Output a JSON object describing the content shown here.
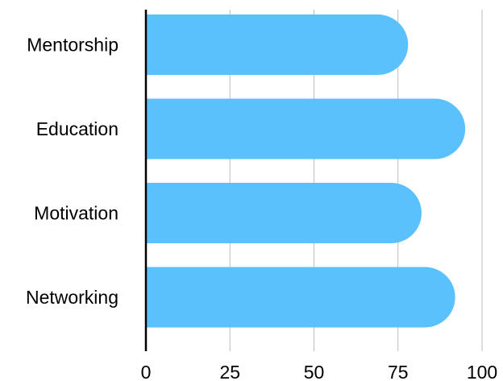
{
  "chart_data": {
    "type": "bar",
    "orientation": "horizontal",
    "categories": [
      "Mentorship",
      "Education",
      "Motivation",
      "Networking"
    ],
    "values": [
      78,
      95,
      82,
      92
    ],
    "xlim": [
      0,
      100
    ],
    "xticks": [
      "0",
      "25",
      "50",
      "75",
      "100"
    ],
    "title": "",
    "xlabel": "",
    "ylabel": "",
    "grid": "vertical",
    "legend": "none",
    "bar_color": "#5AC1FD",
    "grid_color": "#BDBDBD",
    "axis_color": "#000000"
  }
}
